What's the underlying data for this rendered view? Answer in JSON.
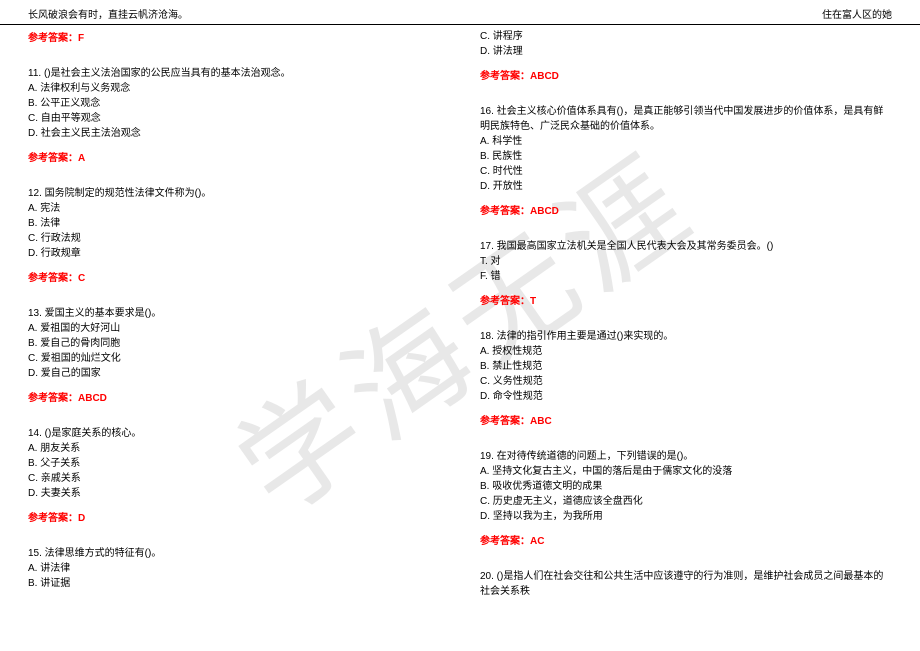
{
  "header": {
    "left": "长风破浪会有时，直挂云帆济沧海。",
    "right": "住在富人区的她"
  },
  "watermark": "学海无涯",
  "left_column": {
    "answer_top": "参考答案：F",
    "q11": {
      "question": "11. ()是社会主义法治国家的公民应当具有的基本法治观念。",
      "optA": "A. 法律权利与义务观念",
      "optB": "B. 公平正义观念",
      "optC": "C. 自由平等观念",
      "optD": "D. 社会主义民主法治观念",
      "answer": "参考答案：A"
    },
    "q12": {
      "question": "12. 国务院制定的规范性法律文件称为()。",
      "optA": "A. 宪法",
      "optB": "B. 法律",
      "optC": "C. 行政法规",
      "optD": "D. 行政规章",
      "answer": "参考答案：C"
    },
    "q13": {
      "question": "13. 爱国主义的基本要求是()。",
      "optA": "A. 爱祖国的大好河山",
      "optB": "B. 爱自己的骨肉同胞",
      "optC": "C. 爱祖国的灿烂文化",
      "optD": "D. 爱自己的国家",
      "answer": "参考答案：ABCD"
    },
    "q14": {
      "question": "14. ()是家庭关系的核心。",
      "optA": "A. 朋友关系",
      "optB": "B. 父子关系",
      "optC": "C. 亲戚关系",
      "optD": "D. 夫妻关系",
      "answer": "参考答案：D"
    },
    "q15": {
      "question": "15. 法律思维方式的特征有()。",
      "optA": "A. 讲法律",
      "optB": "B. 讲证据"
    }
  },
  "right_column": {
    "q15_cont": {
      "optC": "C. 讲程序",
      "optD": "D. 讲法理",
      "answer": "参考答案：ABCD"
    },
    "q16": {
      "question": "16. 社会主义核心价值体系具有()，是真正能够引领当代中国发展进步的价值体系，是具有鲜明民族特色、广泛民众基础的价值体系。",
      "optA": "A. 科学性",
      "optB": "B. 民族性",
      "optC": "C. 时代性",
      "optD": "D. 开放性",
      "answer": "参考答案：ABCD"
    },
    "q17": {
      "question": "17. 我国最高国家立法机关是全国人民代表大会及其常务委员会。()",
      "optT": "T. 对",
      "optF": "F. 错",
      "answer": "参考答案：T"
    },
    "q18": {
      "question": "18. 法律的指引作用主要是通过()来实现的。",
      "optA": "A. 授权性规范",
      "optB": "B. 禁止性规范",
      "optC": "C. 义务性规范",
      "optD": "D. 命令性规范",
      "answer": "参考答案：ABC"
    },
    "q19": {
      "question": "19. 在对待传统道德的问题上，下列错误的是()。",
      "optA": "A. 坚持文化复古主义，中国的落后是由于儒家文化的没落",
      "optB": "B. 吸收优秀道德文明的成果",
      "optC": "C. 历史虚无主义，道德应该全盘西化",
      "optD": "D. 坚持以我为主，为我所用",
      "answer": "参考答案：AC"
    },
    "q20": {
      "question": "20. ()是指人们在社会交往和公共生活中应该遵守的行为准则，是维护社会成员之间最基本的社会关系秩"
    }
  }
}
